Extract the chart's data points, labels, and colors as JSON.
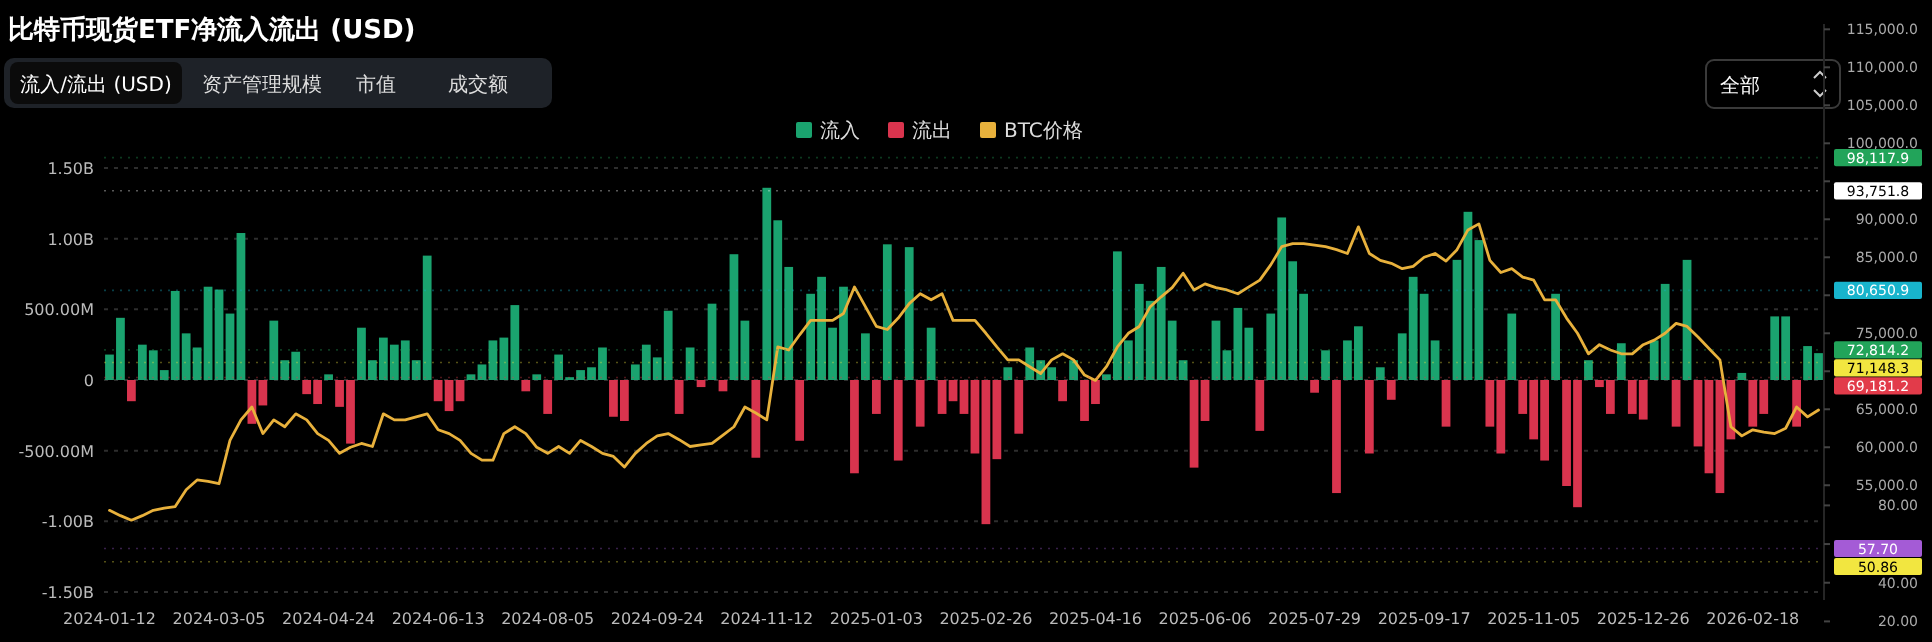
{
  "chart_data": {
    "type": "bar",
    "title": "比特币现货ETF净流入流出 (USD)",
    "annotations": [
      "流入/流出 (USD)",
      "资产管理规模",
      "市值",
      "成交额",
      "全部"
    ],
    "categories": [
      "2024-01-12",
      null,
      null,
      null,
      null,
      null,
      null,
      null,
      null,
      null,
      "2024-03-05",
      null,
      null,
      null,
      null,
      null,
      null,
      null,
      null,
      null,
      "2024-04-24",
      null,
      null,
      null,
      null,
      null,
      null,
      null,
      null,
      null,
      "2024-06-13",
      null,
      null,
      null,
      null,
      null,
      null,
      null,
      null,
      null,
      "2024-08-05",
      null,
      null,
      null,
      null,
      null,
      null,
      null,
      null,
      null,
      "2024-09-24",
      null,
      null,
      null,
      null,
      null,
      null,
      null,
      null,
      null,
      "2024-11-12",
      null,
      null,
      null,
      null,
      null,
      null,
      null,
      null,
      null,
      "2025-01-03",
      null,
      null,
      null,
      null,
      null,
      null,
      null,
      null,
      null,
      "2025-02-26",
      null,
      null,
      null,
      null,
      null,
      null,
      null,
      null,
      null,
      "2025-04-16",
      null,
      null,
      null,
      null,
      null,
      null,
      null,
      null,
      null,
      "2025-06-06",
      null,
      null,
      null,
      null,
      null,
      null,
      null,
      null,
      null,
      "2025-07-29",
      null,
      null,
      null,
      null,
      null,
      null,
      null,
      null,
      null,
      "2025-09-17",
      null,
      null,
      null,
      null,
      null,
      null,
      null,
      null,
      null,
      "2025-11-05",
      null,
      null,
      null,
      null,
      null,
      null,
      null,
      null,
      null,
      "2025-12-26",
      null,
      null,
      null,
      null,
      null,
      null,
      null,
      null,
      null,
      "2026-02-18",
      null,
      null,
      null,
      null,
      null,
      null
    ],
    "stacked": true,
    "series": [
      {
        "name": "流入",
        "color": "#1aa36f",
        "values": [
          180000000.0,
          440000000.0,
          null,
          250000000.0,
          210000000.0,
          70000000.0,
          630000000.0,
          330000000.0,
          230000000.0,
          660000000.0,
          640000000.0,
          470000000.0,
          1040000000.0,
          null,
          null,
          420000000.0,
          140000000.0,
          200000000.0,
          null,
          null,
          40000000.0,
          null,
          null,
          370000000.0,
          140000000.0,
          300000000.0,
          250000000.0,
          280000000.0,
          140000000.0,
          880000000.0,
          null,
          null,
          null,
          40000000.0,
          110000000.0,
          280000000.0,
          300000000.0,
          530000000.0,
          null,
          40000000.0,
          null,
          180000000.0,
          20000000.0,
          70000000.0,
          90000000.0,
          230000000.0,
          null,
          null,
          110000000.0,
          250000000.0,
          160000000.0,
          490000000.0,
          null,
          230000000.0,
          null,
          540000000.0,
          null,
          890000000.0,
          420000000.0,
          null,
          1360000000.0,
          1130000000.0,
          800000000.0,
          null,
          610000000.0,
          730000000.0,
          370000000.0,
          660000000.0,
          null,
          330000000.0,
          null,
          960000000.0,
          null,
          940000000.0,
          null,
          370000000.0,
          null,
          null,
          null,
          null,
          null,
          null,
          90000000.0,
          null,
          230000000.0,
          140000000.0,
          90000000.0,
          null,
          140000000.0,
          null,
          null,
          40000000.0,
          910000000.0,
          280000000.0,
          680000000.0,
          560000000.0,
          800000000.0,
          420000000.0,
          140000000.0,
          null,
          null,
          420000000.0,
          210000000.0,
          510000000.0,
          370000000.0,
          null,
          470000000.0,
          1150000000.0,
          840000000.0,
          610000000.0,
          null,
          210000000.0,
          null,
          280000000.0,
          380000000.0,
          null,
          90000000.0,
          null,
          330000000.0,
          730000000.0,
          610000000.0,
          280000000.0,
          null,
          850000000.0,
          1190000000.0,
          990000000.0,
          null,
          null,
          470000000.0,
          null,
          null,
          null,
          610000000.0,
          null,
          null,
          140000000.0,
          null,
          null,
          260000000.0,
          null,
          null,
          280000000.0,
          680000000.0,
          null,
          850000000.0,
          null,
          null,
          null,
          null,
          50000000.0,
          null,
          null,
          450000000.0,
          450000000.0,
          null,
          240000000.0,
          190000000.0
        ]
      },
      {
        "name": "流出",
        "color": "#d9344e",
        "values": [
          null,
          null,
          -150000000.0,
          null,
          null,
          null,
          null,
          null,
          null,
          null,
          null,
          null,
          null,
          -310000000.0,
          -180000000.0,
          null,
          null,
          null,
          -100000000.0,
          -170000000.0,
          null,
          -190000000.0,
          -450000000.0,
          null,
          null,
          null,
          null,
          null,
          null,
          null,
          -150000000.0,
          -220000000.0,
          -150000000.0,
          null,
          null,
          null,
          null,
          null,
          -80000000.0,
          null,
          -240000000.0,
          null,
          null,
          null,
          null,
          null,
          -260000000.0,
          -290000000.0,
          null,
          null,
          null,
          null,
          -240000000.0,
          null,
          -50000000.0,
          null,
          -80000000.0,
          null,
          null,
          -550000000.0,
          null,
          null,
          null,
          -430000000.0,
          null,
          null,
          null,
          null,
          -660000000.0,
          null,
          -240000000.0,
          null,
          -570000000.0,
          null,
          -330000000.0,
          null,
          -240000000.0,
          -150000000.0,
          -240000000.0,
          -520000000.0,
          -1020000000.0,
          -560000000.0,
          null,
          -380000000.0,
          null,
          null,
          null,
          -150000000.0,
          null,
          -290000000.0,
          -170000000.0,
          null,
          null,
          null,
          null,
          null,
          null,
          null,
          null,
          -620000000.0,
          -290000000.0,
          null,
          null,
          null,
          null,
          -360000000.0,
          null,
          null,
          null,
          null,
          -90000000.0,
          null,
          -800000000.0,
          null,
          null,
          -520000000.0,
          null,
          -140000000.0,
          null,
          null,
          null,
          null,
          -330000000.0,
          null,
          null,
          null,
          -330000000.0,
          -520000000.0,
          null,
          -240000000.0,
          -420000000.0,
          -570000000.0,
          null,
          -750000000.0,
          -900000000.0,
          null,
          -50000000.0,
          -240000000.0,
          null,
          -240000000.0,
          -280000000.0,
          null,
          null,
          -330000000.0,
          null,
          -470000000.0,
          -660000000.0,
          -800000000.0,
          -420000000.0,
          null,
          -330000000.0,
          -240000000.0,
          null,
          null,
          -330000000.0,
          null,
          null
        ]
      },
      {
        "name": "BTC价格",
        "type": "line",
        "axis": "y2",
        "color": "#e8b13c",
        "values": [
          51700,
          51000,
          50400,
          51000,
          51700,
          52000,
          52200,
          54400,
          55700,
          55500,
          55200,
          60900,
          63600,
          65300,
          61800,
          63600,
          62700,
          64400,
          63600,
          61800,
          60900,
          59200,
          60000,
          60500,
          60100,
          64400,
          63600,
          63600,
          64000,
          64400,
          62300,
          61800,
          60900,
          59200,
          58300,
          58300,
          61800,
          62700,
          61800,
          60000,
          59200,
          60100,
          59200,
          60900,
          60100,
          59200,
          58800,
          57400,
          59200,
          60500,
          61500,
          61800,
          61000,
          60100,
          60300,
          60500,
          61600,
          62700,
          65300,
          64500,
          63600,
          73200,
          72800,
          74800,
          76700,
          76700,
          76700,
          77600,
          81100,
          78500,
          75900,
          75500,
          77000,
          78900,
          80200,
          79400,
          80200,
          76700,
          76700,
          76700,
          75000,
          73200,
          71500,
          71500,
          70600,
          69700,
          71500,
          72300,
          71500,
          69500,
          68800,
          70600,
          73200,
          75000,
          75900,
          78500,
          79800,
          81000,
          82900,
          80700,
          81500,
          81000,
          80700,
          80200,
          81100,
          82000,
          84000,
          86400,
          86800,
          86800,
          86600,
          86400,
          86000,
          85500,
          89000,
          85500,
          84600,
          84200,
          83500,
          83800,
          85000,
          85500,
          84500,
          86000,
          88600,
          89400,
          84600,
          83000,
          83500,
          82400,
          82000,
          79400,
          79400,
          77000,
          75000,
          72300,
          73500,
          72800,
          72300,
          72300,
          73500,
          74100,
          75000,
          76300,
          75900,
          74500,
          73000,
          71500,
          62700,
          61500,
          62300,
          62000,
          61800,
          62500,
          65300,
          64000,
          64900
        ]
      }
    ],
    "ylim": [
      -1500000000.0,
      1500000000.0
    ],
    "yticks": [
      {
        "value": 1500000000.0,
        "label": "1.50B"
      },
      {
        "value": 1000000000.0,
        "label": "1.00B"
      },
      {
        "value": 500000000.0,
        "label": "500.00M"
      },
      0,
      {
        "value": -500000000.0,
        "label": "-500.00M"
      },
      {
        "value": -1000000000.0,
        "label": "-1.00B"
      },
      {
        "value": -1500000000.0,
        "label": "-1.50B"
      }
    ],
    "y2lim": [
      39900,
      115700
    ],
    "y2ticks": [
      {
        "value": 55000,
        "label": "55,000.0"
      },
      {
        "value": 60000,
        "label": "60,000.0"
      },
      {
        "value": 65000,
        "label": "65,000.0"
      },
      {
        "value": 70000,
        "label": null
      },
      {
        "value": 75000,
        "label": "75,000.0"
      },
      {
        "value": 80000,
        "label": null
      },
      {
        "value": 85000,
        "label": "85,000.0"
      },
      {
        "value": 90000,
        "label": "90,000.0"
      },
      {
        "value": 95000,
        "label": null
      },
      {
        "value": 100000,
        "label": "100,000.0"
      },
      {
        "value": 105000,
        "label": "105,000.0"
      },
      {
        "value": 110000,
        "label": "110,000.0"
      },
      {
        "value": 115000,
        "label": "115,000.0"
      }
    ],
    "y3lim": [
      20,
      80
    ],
    "y3ticks": [
      {
        "value": 20,
        "label": "20.00"
      },
      {
        "value": 40,
        "label": "40.00"
      },
      {
        "value": 60,
        "label": null
      },
      {
        "value": 80,
        "label": "80.00"
      }
    ],
    "ref_lines": [
      {
        "axis": "y2",
        "value": 98117.9,
        "label": "98,117.9",
        "color": "#22a45a"
      },
      {
        "axis": "y2",
        "value": 93751.8,
        "label": "93,751.8",
        "color": "#ffffff"
      },
      {
        "axis": "y2",
        "value": 80650.9,
        "label": "80,650.9",
        "color": "#18b4cc"
      },
      {
        "axis": "y2",
        "value": 72814.2,
        "label": "72,814.2",
        "color": "#22a45a"
      },
      {
        "axis": "y2",
        "value": 71148.3,
        "label": "71,148.3",
        "color": "#f2e640"
      },
      {
        "axis": "y2",
        "value": 69181.2,
        "label": "69,181.2",
        "color": "#e23b4a"
      },
      {
        "axis": "y3",
        "value": 57.7,
        "label": "57.70",
        "color": "#a45bd6"
      },
      {
        "axis": "y3",
        "value": 50.86,
        "label": "50.86",
        "color": "#f2e640"
      }
    ],
    "grid": "y",
    "legend": "top",
    "marker": "none",
    "line_style": "solid"
  }
}
